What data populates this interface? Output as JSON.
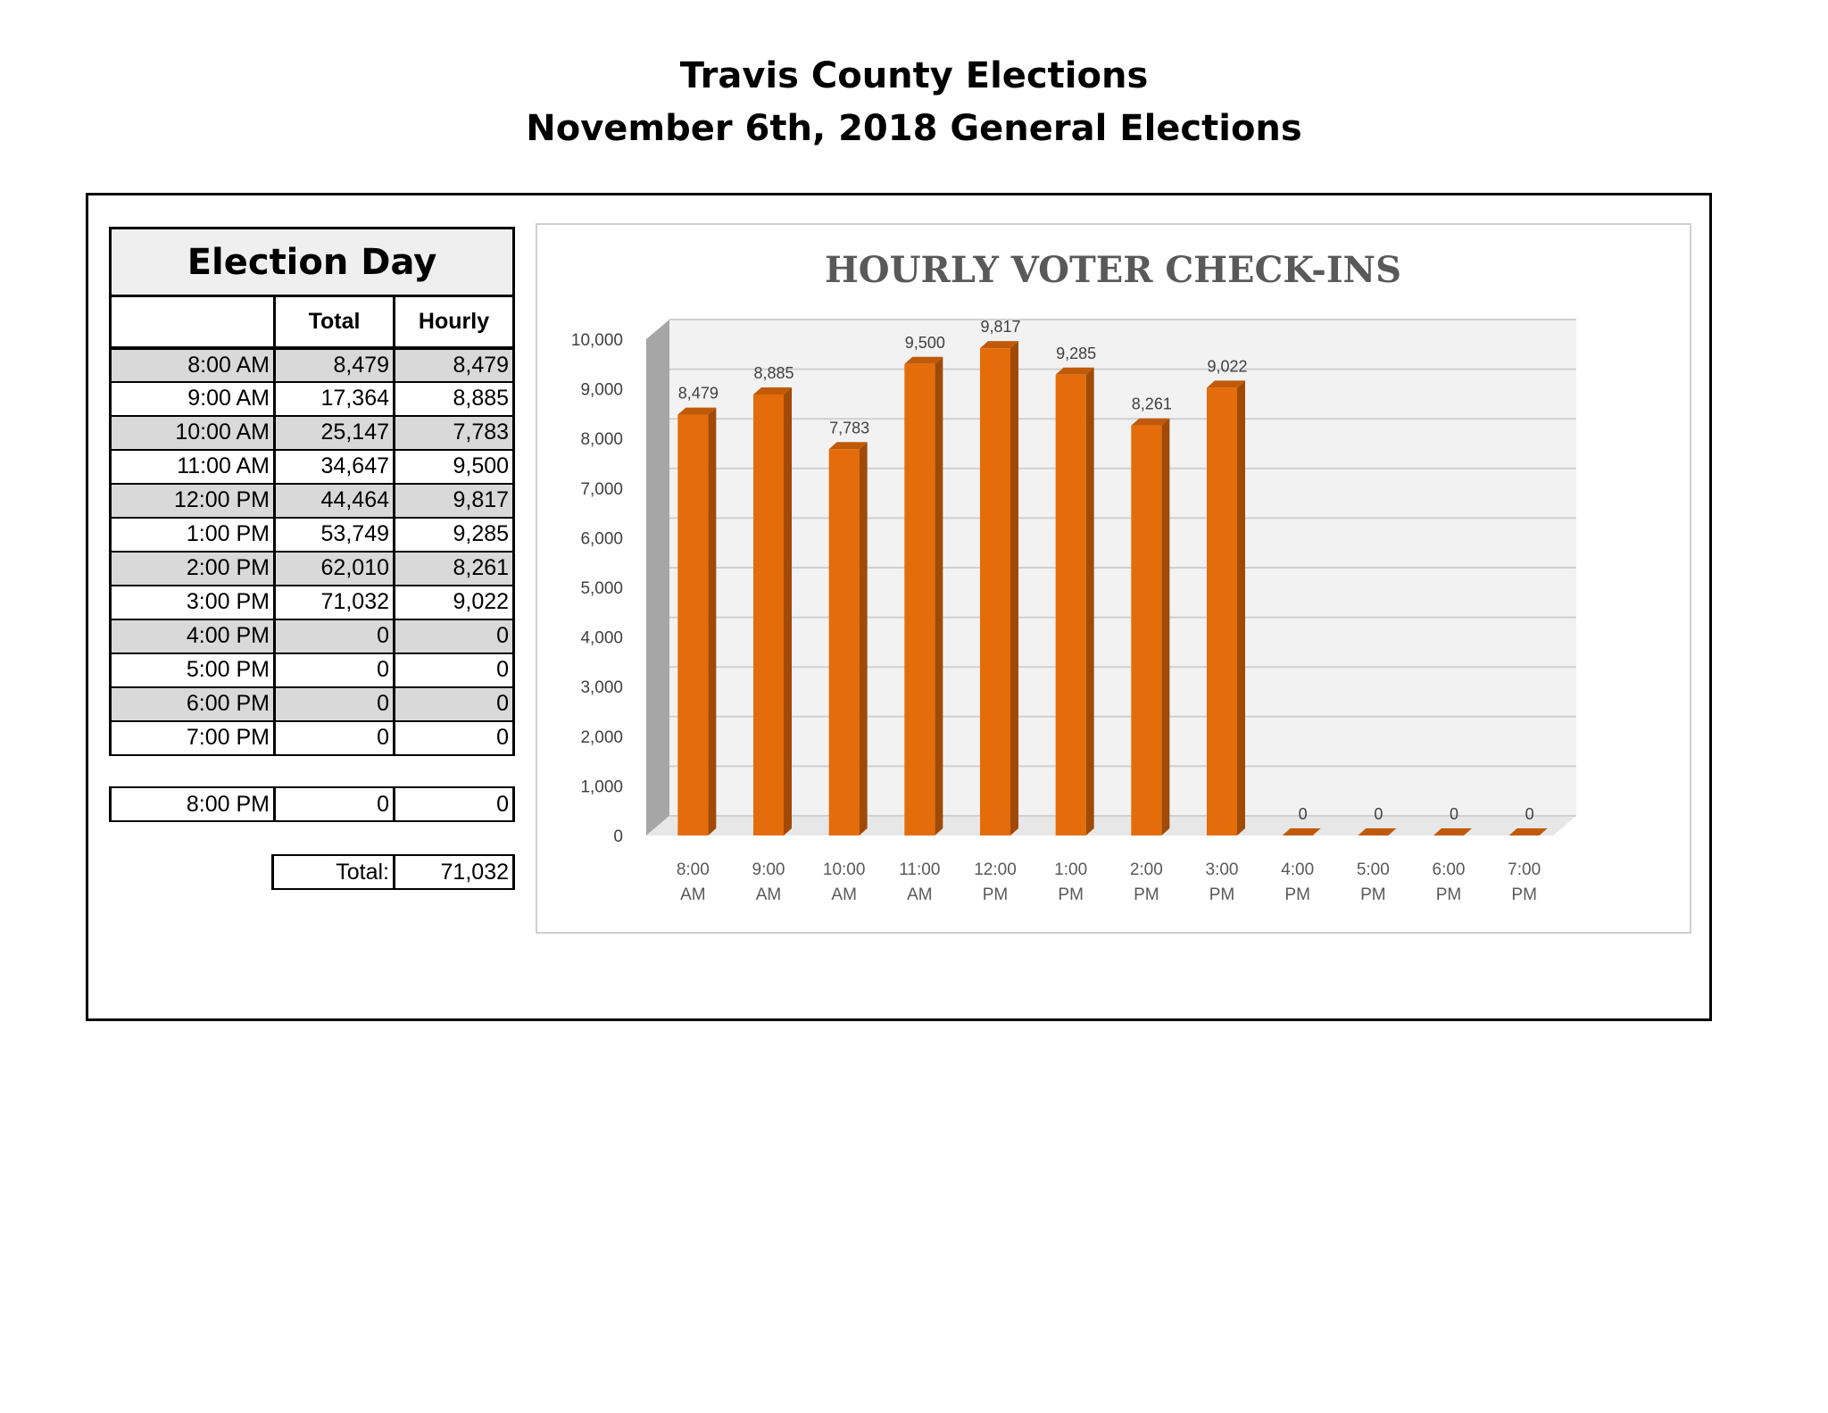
{
  "header": {
    "title": "Travis County Elections",
    "subtitle": "November 6th, 2018 General Elections"
  },
  "table": {
    "title": "Election Day",
    "col_total": "Total",
    "col_hourly": "Hourly",
    "rows": [
      {
        "time": "8:00 AM",
        "total": "8,479",
        "hourly": "8,479"
      },
      {
        "time": "9:00 AM",
        "total": "17,364",
        "hourly": "8,885"
      },
      {
        "time": "10:00 AM",
        "total": "25,147",
        "hourly": "7,783"
      },
      {
        "time": "11:00 AM",
        "total": "34,647",
        "hourly": "9,500"
      },
      {
        "time": "12:00 PM",
        "total": "44,464",
        "hourly": "9,817"
      },
      {
        "time": "1:00 PM",
        "total": "53,749",
        "hourly": "9,285"
      },
      {
        "time": "2:00 PM",
        "total": "62,010",
        "hourly": "8,261"
      },
      {
        "time": "3:00 PM",
        "total": "71,032",
        "hourly": "9,022"
      },
      {
        "time": "4:00 PM",
        "total": "0",
        "hourly": "0"
      },
      {
        "time": "5:00 PM",
        "total": "0",
        "hourly": "0"
      },
      {
        "time": "6:00 PM",
        "total": "0",
        "hourly": "0"
      },
      {
        "time": "7:00 PM",
        "total": "0",
        "hourly": "0"
      }
    ],
    "extra_row": {
      "time": "8:00 PM",
      "total": "0",
      "hourly": "0"
    },
    "total_label": "Total:",
    "total_value": "71,032"
  },
  "chart_data": {
    "type": "bar",
    "title": "HOURLY VOTER CHECK-INS",
    "categories": [
      [
        "8:00",
        "AM"
      ],
      [
        "9:00",
        "AM"
      ],
      [
        "10:00",
        "AM"
      ],
      [
        "11:00",
        "AM"
      ],
      [
        "12:00",
        "PM"
      ],
      [
        "1:00",
        "PM"
      ],
      [
        "2:00",
        "PM"
      ],
      [
        "3:00",
        "PM"
      ],
      [
        "4:00",
        "PM"
      ],
      [
        "5:00",
        "PM"
      ],
      [
        "6:00",
        "PM"
      ],
      [
        "7:00",
        "PM"
      ]
    ],
    "values": [
      8479,
      8885,
      7783,
      9500,
      9817,
      9285,
      8261,
      9022,
      0,
      0,
      0,
      0
    ],
    "data_labels": [
      "8,479",
      "8,885",
      "7,783",
      "9,500",
      "9,817",
      "9,285",
      "8,261",
      "9,022",
      "0",
      "0",
      "0",
      "0"
    ],
    "ylim": [
      0,
      10000
    ],
    "yticks": [
      "0",
      "1,000",
      "2,000",
      "3,000",
      "4,000",
      "5,000",
      "6,000",
      "7,000",
      "8,000",
      "9,000",
      "10,000"
    ],
    "ytick_values": [
      0,
      1000,
      2000,
      3000,
      4000,
      5000,
      6000,
      7000,
      8000,
      9000,
      10000
    ],
    "grid": true,
    "bar_color": "#e46c0a",
    "bar_side_color": "#a04a06",
    "bar_top_color": "#c05a08"
  }
}
